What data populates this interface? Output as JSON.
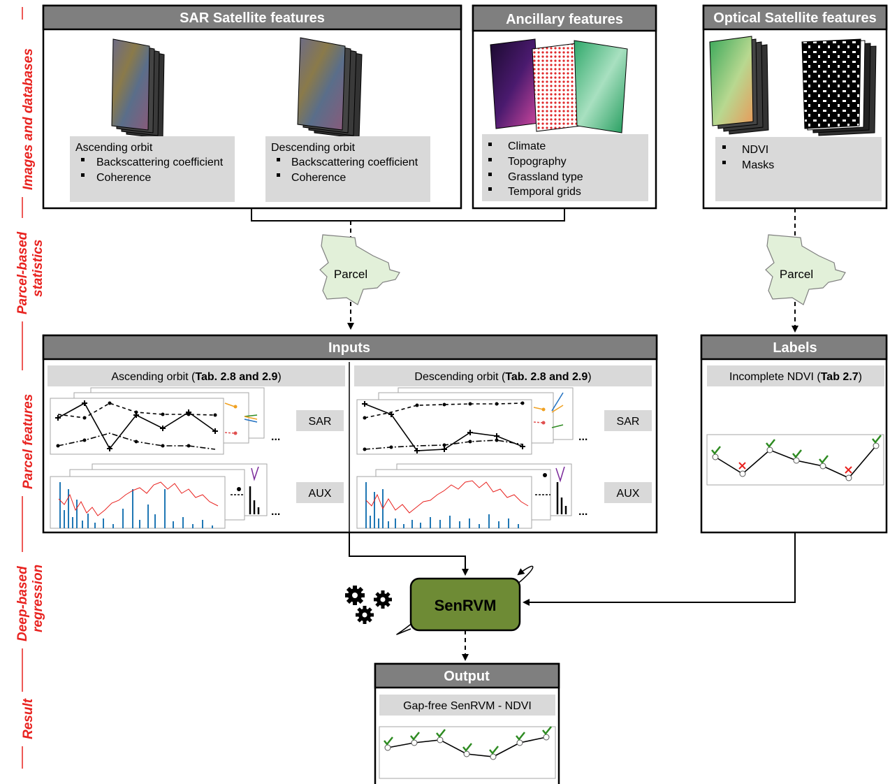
{
  "side_labels": {
    "images": "Images and databases",
    "parcel_stats_1": "Parcel-based",
    "parcel_stats_2": "statistics",
    "parcel_features": "Parcel features",
    "regression_1": "Deep-based",
    "regression_2": "regression",
    "result": "Result"
  },
  "sar": {
    "title": "SAR Satellite features",
    "ascending": {
      "title": "Ascending orbit",
      "items": [
        "Backscattering coefficient",
        "Coherence"
      ]
    },
    "descending": {
      "title": "Descending orbit",
      "items": [
        "Backscattering coefficient",
        "Coherence"
      ]
    }
  },
  "ancillary": {
    "title": "Ancillary features",
    "items": [
      "Climate",
      "Topography",
      "Grassland type",
      "Temporal grids"
    ]
  },
  "optical": {
    "title": "Optical Satellite features",
    "items": [
      "NDVI",
      "Masks"
    ]
  },
  "parcel_label": "Parcel",
  "inputs": {
    "title": "Inputs",
    "asc_label": "Ascending  orbit  (",
    "asc_bold": "Tab. 2.8 and 2.9",
    "desc_label": "Descending  orbit  (",
    "desc_bold": "Tab. 2.8 and 2.9",
    "close_paren": ")",
    "sar_tag": "SAR",
    "aux_tag": "AUX",
    "ellipsis": "..."
  },
  "labels": {
    "title": "Labels",
    "label_text": "Incomplete NDVI  (",
    "label_bold": "Tab 2.7",
    "close_paren": ")"
  },
  "model": {
    "name": "SenRVM"
  },
  "output": {
    "title": "Output",
    "label": "Gap-free SenRVM - NDVI"
  },
  "colors": {
    "header_grey": "#7f7f7f",
    "panel_grey": "#d9d9d9",
    "model_green": "#6e8b35",
    "side_red": "#e8221f",
    "check_green": "#2e8b22",
    "cross_red": "#e8221f"
  }
}
